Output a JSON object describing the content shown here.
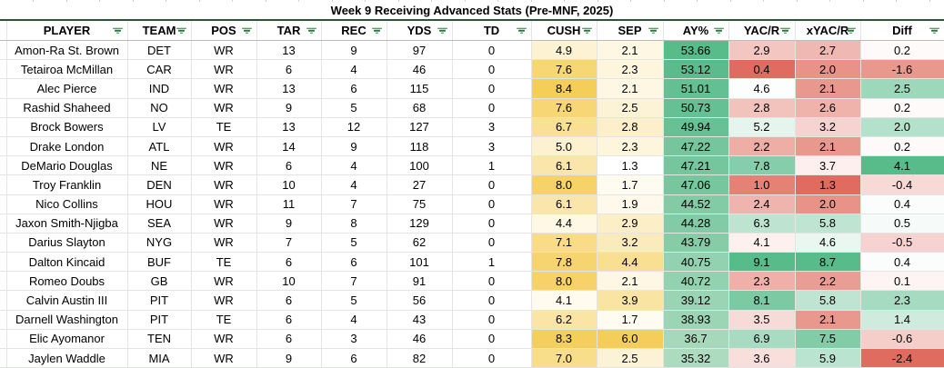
{
  "title": "Week 9 Receiving Advanced Stats (Pre-MNF, 2025)",
  "columns": [
    {
      "key": "player",
      "label": "PLAYER"
    },
    {
      "key": "team",
      "label": "TEAM"
    },
    {
      "key": "pos",
      "label": "POS"
    },
    {
      "key": "tar",
      "label": "TAR"
    },
    {
      "key": "rec",
      "label": "REC"
    },
    {
      "key": "yds",
      "label": "YDS"
    },
    {
      "key": "td",
      "label": "TD"
    },
    {
      "key": "cush",
      "label": "CUSH"
    },
    {
      "key": "sep",
      "label": "SEP"
    },
    {
      "key": "ay_pct",
      "label": "AY%"
    },
    {
      "key": "yac_r",
      "label": "YAC/R"
    },
    {
      "key": "xyac_r",
      "label": "xYAC/R"
    },
    {
      "key": "diff",
      "label": "Diff"
    }
  ],
  "rows": [
    {
      "cells": [
        "Amon-Ra St. Brown",
        "DET",
        "WR",
        "13",
        "9",
        "97",
        "0",
        "4.9",
        "2.1",
        "53.66",
        "2.9",
        "2.7",
        "0.2"
      ]
    },
    {
      "cells": [
        "Tetairoa McMillan",
        "CAR",
        "WR",
        "6",
        "4",
        "46",
        "0",
        "7.6",
        "2.3",
        "53.12",
        "0.4",
        "2.0",
        "-1.6"
      ]
    },
    {
      "cells": [
        "Alec Pierce",
        "IND",
        "WR",
        "13",
        "6",
        "115",
        "0",
        "8.4",
        "2.1",
        "51.01",
        "4.6",
        "2.1",
        "2.5"
      ]
    },
    {
      "cells": [
        "Rashid Shaheed",
        "NO",
        "WR",
        "9",
        "5",
        "68",
        "0",
        "7.6",
        "2.5",
        "50.73",
        "2.8",
        "2.6",
        "0.2"
      ]
    },
    {
      "cells": [
        "Brock Bowers",
        "LV",
        "TE",
        "13",
        "12",
        "127",
        "3",
        "6.7",
        "2.8",
        "49.94",
        "5.2",
        "3.2",
        "2.0"
      ]
    },
    {
      "cells": [
        "Drake London",
        "ATL",
        "WR",
        "14",
        "9",
        "118",
        "3",
        "5.0",
        "2.3",
        "47.22",
        "2.2",
        "2.1",
        "0.2"
      ]
    },
    {
      "cells": [
        "DeMario Douglas",
        "NE",
        "WR",
        "6",
        "4",
        "100",
        "1",
        "6.1",
        "1.3",
        "47.21",
        "7.8",
        "3.7",
        "4.1"
      ]
    },
    {
      "cells": [
        "Troy Franklin",
        "DEN",
        "WR",
        "10",
        "4",
        "27",
        "0",
        "8.0",
        "1.7",
        "47.06",
        "1.0",
        "1.3",
        "-0.4"
      ]
    },
    {
      "cells": [
        "Nico Collins",
        "HOU",
        "WR",
        "11",
        "7",
        "75",
        "0",
        "6.1",
        "1.9",
        "44.52",
        "2.4",
        "2.0",
        "0.4"
      ]
    },
    {
      "cells": [
        "Jaxon Smith-Njigba",
        "SEA",
        "WR",
        "9",
        "8",
        "129",
        "0",
        "4.4",
        "2.9",
        "44.28",
        "6.3",
        "5.8",
        "0.5"
      ]
    },
    {
      "cells": [
        "Darius Slayton",
        "NYG",
        "WR",
        "7",
        "5",
        "62",
        "0",
        "7.1",
        "3.2",
        "43.79",
        "4.1",
        "4.6",
        "-0.5"
      ]
    },
    {
      "cells": [
        "Dalton Kincaid",
        "BUF",
        "TE",
        "6",
        "6",
        "101",
        "1",
        "7.8",
        "4.4",
        "40.75",
        "9.1",
        "8.7",
        "0.4"
      ]
    },
    {
      "cells": [
        "Romeo Doubs",
        "GB",
        "WR",
        "10",
        "7",
        "91",
        "0",
        "8.0",
        "2.1",
        "40.72",
        "2.3",
        "2.2",
        "0.1"
      ]
    },
    {
      "cells": [
        "Calvin Austin III",
        "PIT",
        "WR",
        "6",
        "5",
        "56",
        "0",
        "4.1",
        "3.9",
        "39.12",
        "8.1",
        "5.8",
        "2.3"
      ]
    },
    {
      "cells": [
        "Darnell Washington",
        "PIT",
        "TE",
        "6",
        "4",
        "43",
        "0",
        "6.2",
        "1.7",
        "38.93",
        "3.5",
        "2.1",
        "1.4"
      ]
    },
    {
      "cells": [
        "Elic Ayomanor",
        "TEN",
        "WR",
        "6",
        "3",
        "46",
        "0",
        "8.3",
        "6.0",
        "36.7",
        "6.9",
        "7.5",
        "-0.6"
      ]
    },
    {
      "cells": [
        "Jaylen Waddle",
        "MIA",
        "WR",
        "9",
        "6",
        "82",
        "0",
        "7.0",
        "2.5",
        "35.32",
        "3.6",
        "5.9",
        "-2.4"
      ]
    }
  ],
  "color_scales": {
    "cush": {
      "type": "linear",
      "min": 4.1,
      "max": 8.4,
      "from": "#FFFBEF",
      "to": "#F5CE5A"
    },
    "sep": {
      "type": "linear",
      "min": 1.3,
      "max": 6.0,
      "from": "#FFFFFF",
      "to": "#F5CE5A"
    },
    "ay_pct": {
      "type": "linear",
      "min": 35.32,
      "max": 53.66,
      "from": "#ACDBC0",
      "to": "#57BB8A"
    },
    "yac_r": {
      "type": "diverging",
      "min": 0.4,
      "mid": 4.5,
      "max": 9.1,
      "low_color": "#E06C5F",
      "mid_color": "#FFFFFF",
      "high_color": "#57BB8A"
    },
    "xyac_r": {
      "type": "diverging",
      "min": 1.3,
      "mid": 4.0,
      "max": 8.7,
      "low_color": "#E06C5F",
      "mid_color": "#FFFFFF",
      "high_color": "#57BB8A"
    },
    "diff": {
      "type": "diverging",
      "min": -2.4,
      "mid": 0.3,
      "max": 4.1,
      "low_color": "#E06C5F",
      "mid_color": "#FFFFFF",
      "high_color": "#57BB8A"
    }
  },
  "colors": {
    "filter_icon_green": "#1E7E3E",
    "title_border_green": "#2C5237",
    "gridline_gray": "#E3E5E3",
    "header_border_gray": "#B9BDB9",
    "scale_red": "#E06C5F",
    "scale_green": "#57BB8A",
    "scale_yellow": "#F5CE5A"
  }
}
